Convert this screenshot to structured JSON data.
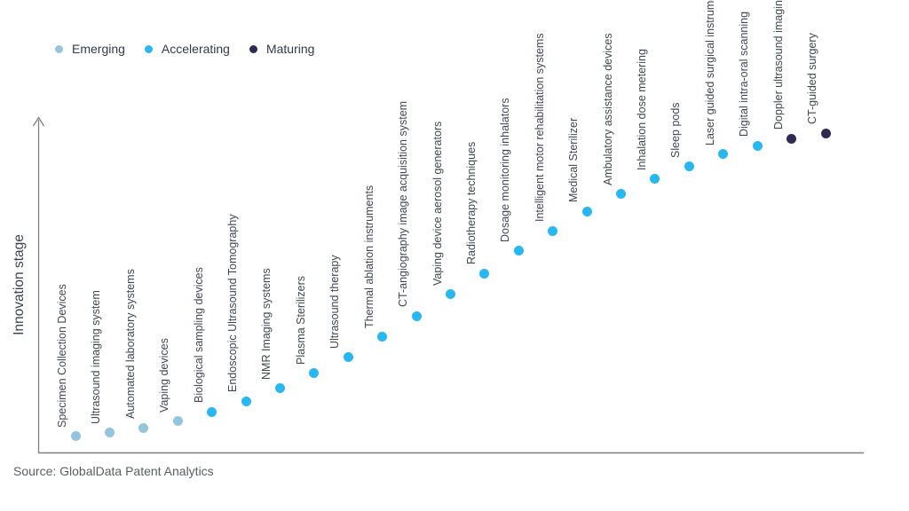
{
  "legend": {
    "items": [
      {
        "label": "Emerging",
        "key": "emerging"
      },
      {
        "label": "Accelerating",
        "key": "accelerating"
      },
      {
        "label": "Maturing",
        "key": "maturing"
      }
    ]
  },
  "axis": {
    "ylabel": "Innovation stage"
  },
  "source": {
    "text": "Source: GlobalData Patent Analytics"
  },
  "colors": {
    "emerging": "#95c4de",
    "accelerating": "#29b7f1",
    "maturing": "#2e2a56",
    "axis_line": "#7f7f7f",
    "label_text": "#414753"
  },
  "chart_data": {
    "type": "scatter",
    "title": "",
    "xlabel": "",
    "ylabel": "Innovation stage",
    "legend_position": "top-left",
    "grid": false,
    "y_axis": {
      "arrow": true,
      "ticks": "none",
      "level_range": [
        0,
        100
      ]
    },
    "legend_entries": [
      "Emerging",
      "Accelerating",
      "Maturing"
    ],
    "points": [
      {
        "label": "Specimen Collection Devices",
        "stage": "emerging",
        "level": 5.3
      },
      {
        "label": "Ultrasound imaging system",
        "stage": "emerging",
        "level": 6.4
      },
      {
        "label": "Automated laboratory systems",
        "stage": "emerging",
        "level": 8.0
      },
      {
        "label": "Vaping devices",
        "stage": "emerging",
        "level": 10.0
      },
      {
        "label": "Biological sampling devices",
        "stage": "accelerating",
        "level": 13.0
      },
      {
        "label": "Endoscopic Ultrasound Tomography",
        "stage": "accelerating",
        "level": 16.3
      },
      {
        "label": "NMR Imaging systems",
        "stage": "accelerating",
        "level": 20.3
      },
      {
        "label": "Plasma Sterilizers",
        "stage": "accelerating",
        "level": 25.0
      },
      {
        "label": "Ultrasound therapy",
        "stage": "accelerating",
        "level": 30.0
      },
      {
        "label": "Thermal ablation instruments",
        "stage": "accelerating",
        "level": 36.3
      },
      {
        "label": "CT-angiography image acquisition system",
        "stage": "accelerating",
        "level": 42.9
      },
      {
        "label": "Vaping device aerosol generators",
        "stage": "accelerating",
        "level": 49.6
      },
      {
        "label": "Radiotherapy techniques",
        "stage": "accelerating",
        "level": 56.2
      },
      {
        "label": "Dosage monitoring inhalators",
        "stage": "accelerating",
        "level": 63.2
      },
      {
        "label": "Intelligent motor rehabilitation systems",
        "stage": "accelerating",
        "level": 69.5
      },
      {
        "label": "Medical Sterilizer",
        "stage": "accelerating",
        "level": 75.6
      },
      {
        "label": "Ambulatory assistance devices",
        "stage": "accelerating",
        "level": 80.9
      },
      {
        "label": "Inhalation dose metering",
        "stage": "accelerating",
        "level": 85.6
      },
      {
        "label": "Sleep pods",
        "stage": "accelerating",
        "level": 89.5
      },
      {
        "label": "Laser guided surgical instruments",
        "stage": "accelerating",
        "level": 93.4
      },
      {
        "label": "Digital intra-oral scanning",
        "stage": "accelerating",
        "level": 96.1
      },
      {
        "label": "Doppler ultrasound imaging",
        "stage": "maturing",
        "level": 98.3
      },
      {
        "label": "CT-guided surgery",
        "stage": "maturing",
        "level": 100
      }
    ]
  }
}
